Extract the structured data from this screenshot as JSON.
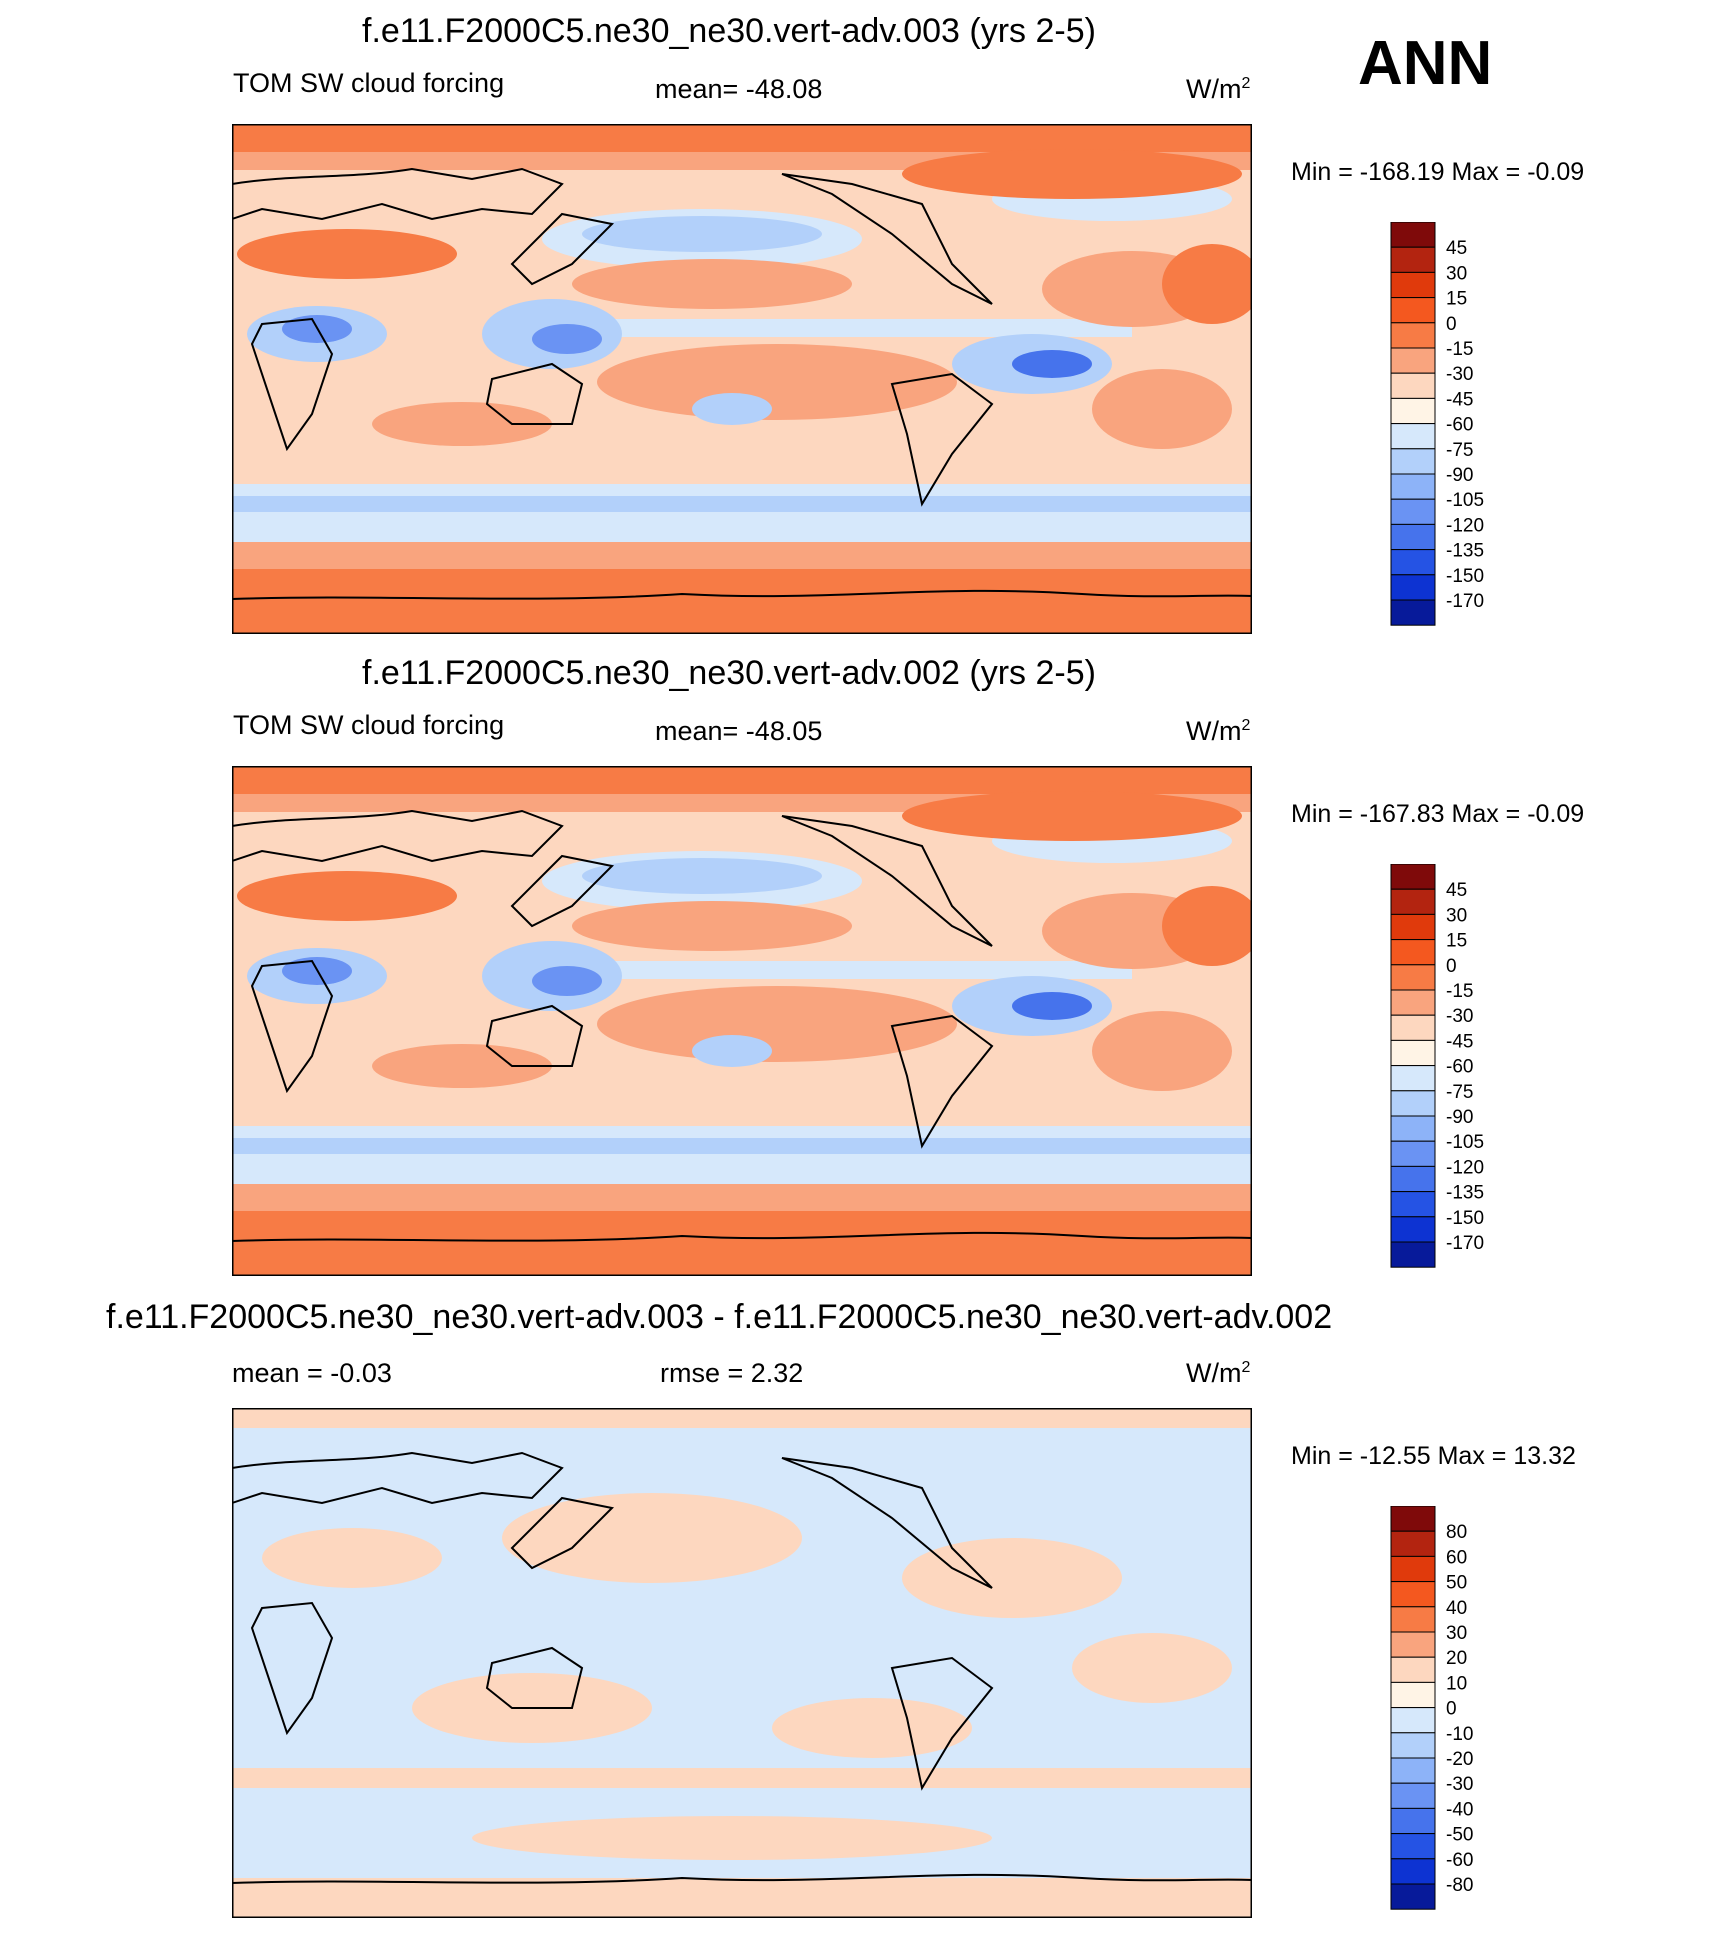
{
  "season": "ANN",
  "panels": [
    {
      "title": "f.e11.F2000C5.ne30_ne30.vert-adv.003 (yrs 2-5)",
      "variable": "TOM SW cloud forcing",
      "stat": "mean= -48.08",
      "units": "W/m",
      "units_sup": "2",
      "minmax": "Min = -168.19 Max =  -0.09",
      "colorbar": {
        "colors": [
          "#7f0a0a",
          "#b32410",
          "#e03a0c",
          "#f4581f",
          "#f77b45",
          "#f9a47e",
          "#fdd7bf",
          "#fff4e6",
          "#d6e8fb",
          "#b2d0fa",
          "#8db3f8",
          "#6a93f3",
          "#4673ec",
          "#2553e4",
          "#0d33d2",
          "#071a9a"
        ],
        "labels": [
          "45",
          "30",
          "15",
          "0",
          "-15",
          "-30",
          "-45",
          "-60",
          "-75",
          "-90",
          "-105",
          "-120",
          "-135",
          "-150",
          "-170"
        ]
      }
    },
    {
      "title": "f.e11.F2000C5.ne30_ne30.vert-adv.002 (yrs 2-5)",
      "variable": "TOM SW cloud forcing",
      "stat": "mean= -48.05",
      "units": "W/m",
      "units_sup": "2",
      "minmax": "Min = -167.83 Max =  -0.09",
      "colorbar": {
        "colors": [
          "#7f0a0a",
          "#b32410",
          "#e03a0c",
          "#f4581f",
          "#f77b45",
          "#f9a47e",
          "#fdd7bf",
          "#fff4e6",
          "#d6e8fb",
          "#b2d0fa",
          "#8db3f8",
          "#6a93f3",
          "#4673ec",
          "#2553e4",
          "#0d33d2",
          "#071a9a"
        ],
        "labels": [
          "45",
          "30",
          "15",
          "0",
          "-15",
          "-30",
          "-45",
          "-60",
          "-75",
          "-90",
          "-105",
          "-120",
          "-135",
          "-150",
          "-170"
        ]
      }
    },
    {
      "title": "f.e11.F2000C5.ne30_ne30.vert-adv.003 - f.e11.F2000C5.ne30_ne30.vert-adv.002",
      "variable": "",
      "stat": "mean =  -0.03",
      "rmse": "rmse =   2.32",
      "units": "W/m",
      "units_sup": "2",
      "minmax": "Min = -12.55 Max =  13.32",
      "colorbar": {
        "colors": [
          "#7f0a0a",
          "#b32410",
          "#e03a0c",
          "#f4581f",
          "#f77b45",
          "#f9a47e",
          "#fdd7bf",
          "#fff4e6",
          "#d6e8fb",
          "#b2d0fa",
          "#8db3f8",
          "#6a93f3",
          "#4673ec",
          "#2553e4",
          "#0d33d2",
          "#071a9a"
        ],
        "labels": [
          "80",
          "60",
          "50",
          "40",
          "30",
          "20",
          "10",
          "0",
          "-10",
          "-20",
          "-30",
          "-40",
          "-50",
          "-60",
          "-80"
        ]
      }
    }
  ]
}
